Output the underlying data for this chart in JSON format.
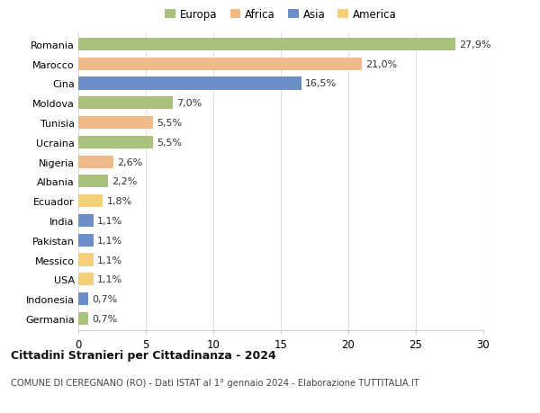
{
  "countries": [
    "Romania",
    "Marocco",
    "Cina",
    "Moldova",
    "Tunisia",
    "Ucraina",
    "Nigeria",
    "Albania",
    "Ecuador",
    "India",
    "Pakistan",
    "Messico",
    "USA",
    "Indonesia",
    "Germania"
  ],
  "values": [
    27.9,
    21.0,
    16.5,
    7.0,
    5.5,
    5.5,
    2.6,
    2.2,
    1.8,
    1.1,
    1.1,
    1.1,
    1.1,
    0.7,
    0.7
  ],
  "labels": [
    "27,9%",
    "21,0%",
    "16,5%",
    "7,0%",
    "5,5%",
    "5,5%",
    "2,6%",
    "2,2%",
    "1,8%",
    "1,1%",
    "1,1%",
    "1,1%",
    "1,1%",
    "0,7%",
    "0,7%"
  ],
  "continents": [
    "Europa",
    "Africa",
    "Asia",
    "Europa",
    "Africa",
    "Europa",
    "Africa",
    "Europa",
    "America",
    "Asia",
    "Asia",
    "America",
    "America",
    "Asia",
    "Europa"
  ],
  "colors": {
    "Europa": "#a8c17c",
    "Africa": "#f0b98a",
    "Asia": "#6b8ec9",
    "America": "#f5d07a"
  },
  "legend_order": [
    "Europa",
    "Africa",
    "Asia",
    "America"
  ],
  "title": "Cittadini Stranieri per Cittadinanza - 2024",
  "subtitle": "COMUNE DI CEREGNANO (RO) - Dati ISTAT al 1° gennaio 2024 - Elaborazione TUTTITALIA.IT",
  "xlim": [
    0,
    30
  ],
  "xticks": [
    0,
    5,
    10,
    15,
    20,
    25,
    30
  ],
  "background_color": "#ffffff",
  "grid_color": "#dddddd"
}
